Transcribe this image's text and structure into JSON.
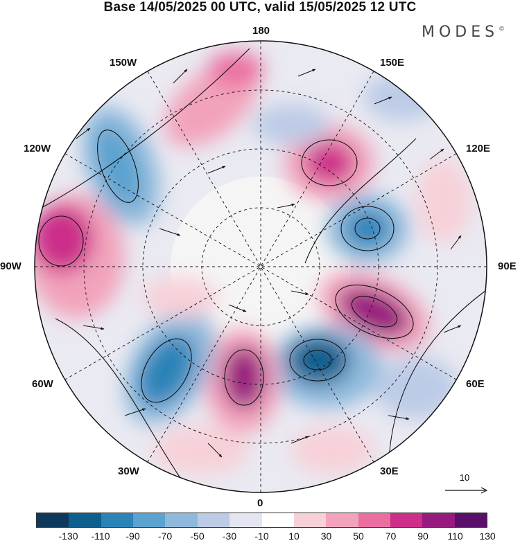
{
  "title": "Base 14/05/2025 00 UTC, valid 15/05/2025 12 UTC",
  "brand": "MODES",
  "brand_mark": "©",
  "longitude_labels": [
    "180",
    "150E",
    "120E",
    "90E",
    "60E",
    "30E",
    "0",
    "30W",
    "60W",
    "90W",
    "120W",
    "150W"
  ],
  "reference_vector": "10",
  "colorbar": {
    "colors": [
      "#0d3a5c",
      "#0f5f8d",
      "#2b83b8",
      "#5aa2cf",
      "#8fb9dc",
      "#bccbe6",
      "#e3e5f1",
      "#ffffff",
      "#f7d0d8",
      "#f2a3bb",
      "#ea6fa0",
      "#cc2e8a",
      "#971b7e",
      "#5a0f6b"
    ],
    "tick_labels": [
      "-130",
      "-110",
      "-90",
      "-70",
      "-50",
      "-30",
      "-10",
      "10",
      "30",
      "50",
      "70",
      "90",
      "110",
      "130"
    ]
  },
  "anomaly_centers": [
    {
      "sign": "positive",
      "value": 130,
      "lon": 80,
      "lat": 55
    },
    {
      "sign": "negative",
      "value": -110,
      "lon": 28,
      "lat": 50
    },
    {
      "sign": "positive",
      "value": 110,
      "lon": -8,
      "lat": 52
    },
    {
      "sign": "negative",
      "value": -90,
      "lon": -45,
      "lat": 45
    },
    {
      "sign": "positive",
      "value": 70,
      "lon": -97,
      "lat": 38
    },
    {
      "sign": "negative",
      "value": -70,
      "lon": -135,
      "lat": 40
    },
    {
      "sign": "positive",
      "value": 50,
      "lon": -168,
      "lat": 40
    },
    {
      "sign": "positive",
      "value": 110,
      "lon": 150,
      "lat": 55
    },
    {
      "sign": "negative",
      "value": -110,
      "lon": 110,
      "lat": 58
    }
  ]
}
